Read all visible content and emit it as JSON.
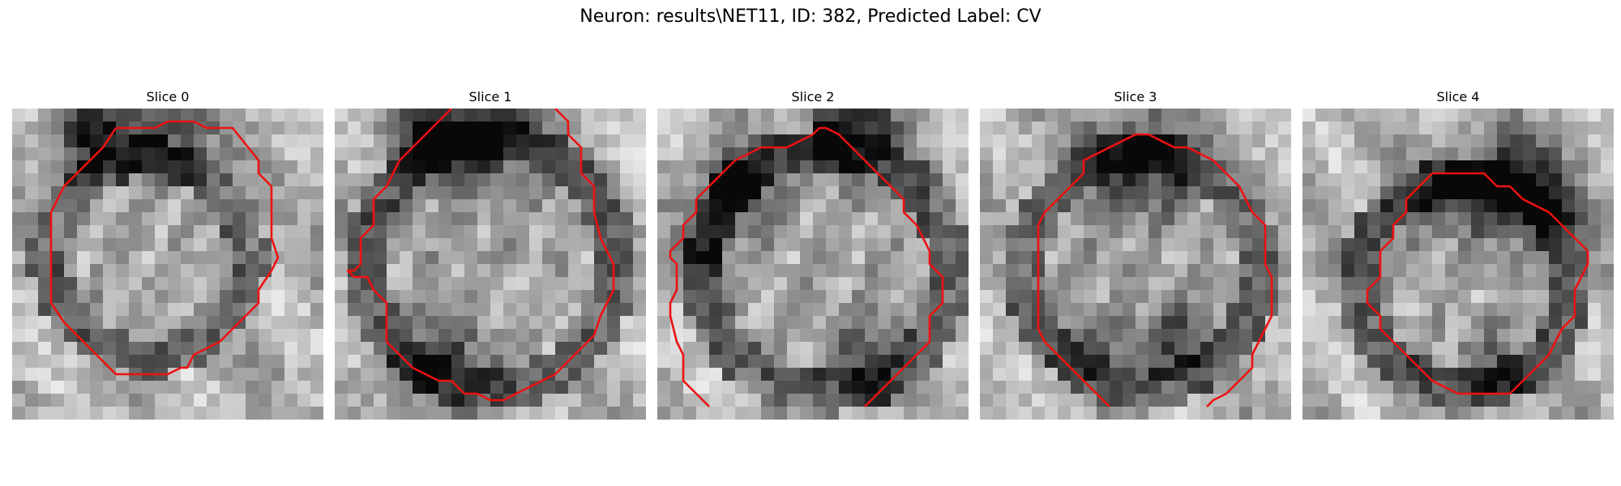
{
  "figure": {
    "suptitle": "Neuron: results\\NET11, ID: 382, Predicted Label: CV"
  },
  "panels": [
    {
      "title": "Slice 0"
    },
    {
      "title": "Slice 1"
    },
    {
      "title": "Slice 2"
    },
    {
      "title": "Slice 3"
    },
    {
      "title": "Slice 4"
    }
  ],
  "colors": {
    "contour": "#ee1111",
    "background": "#ffffff"
  }
}
